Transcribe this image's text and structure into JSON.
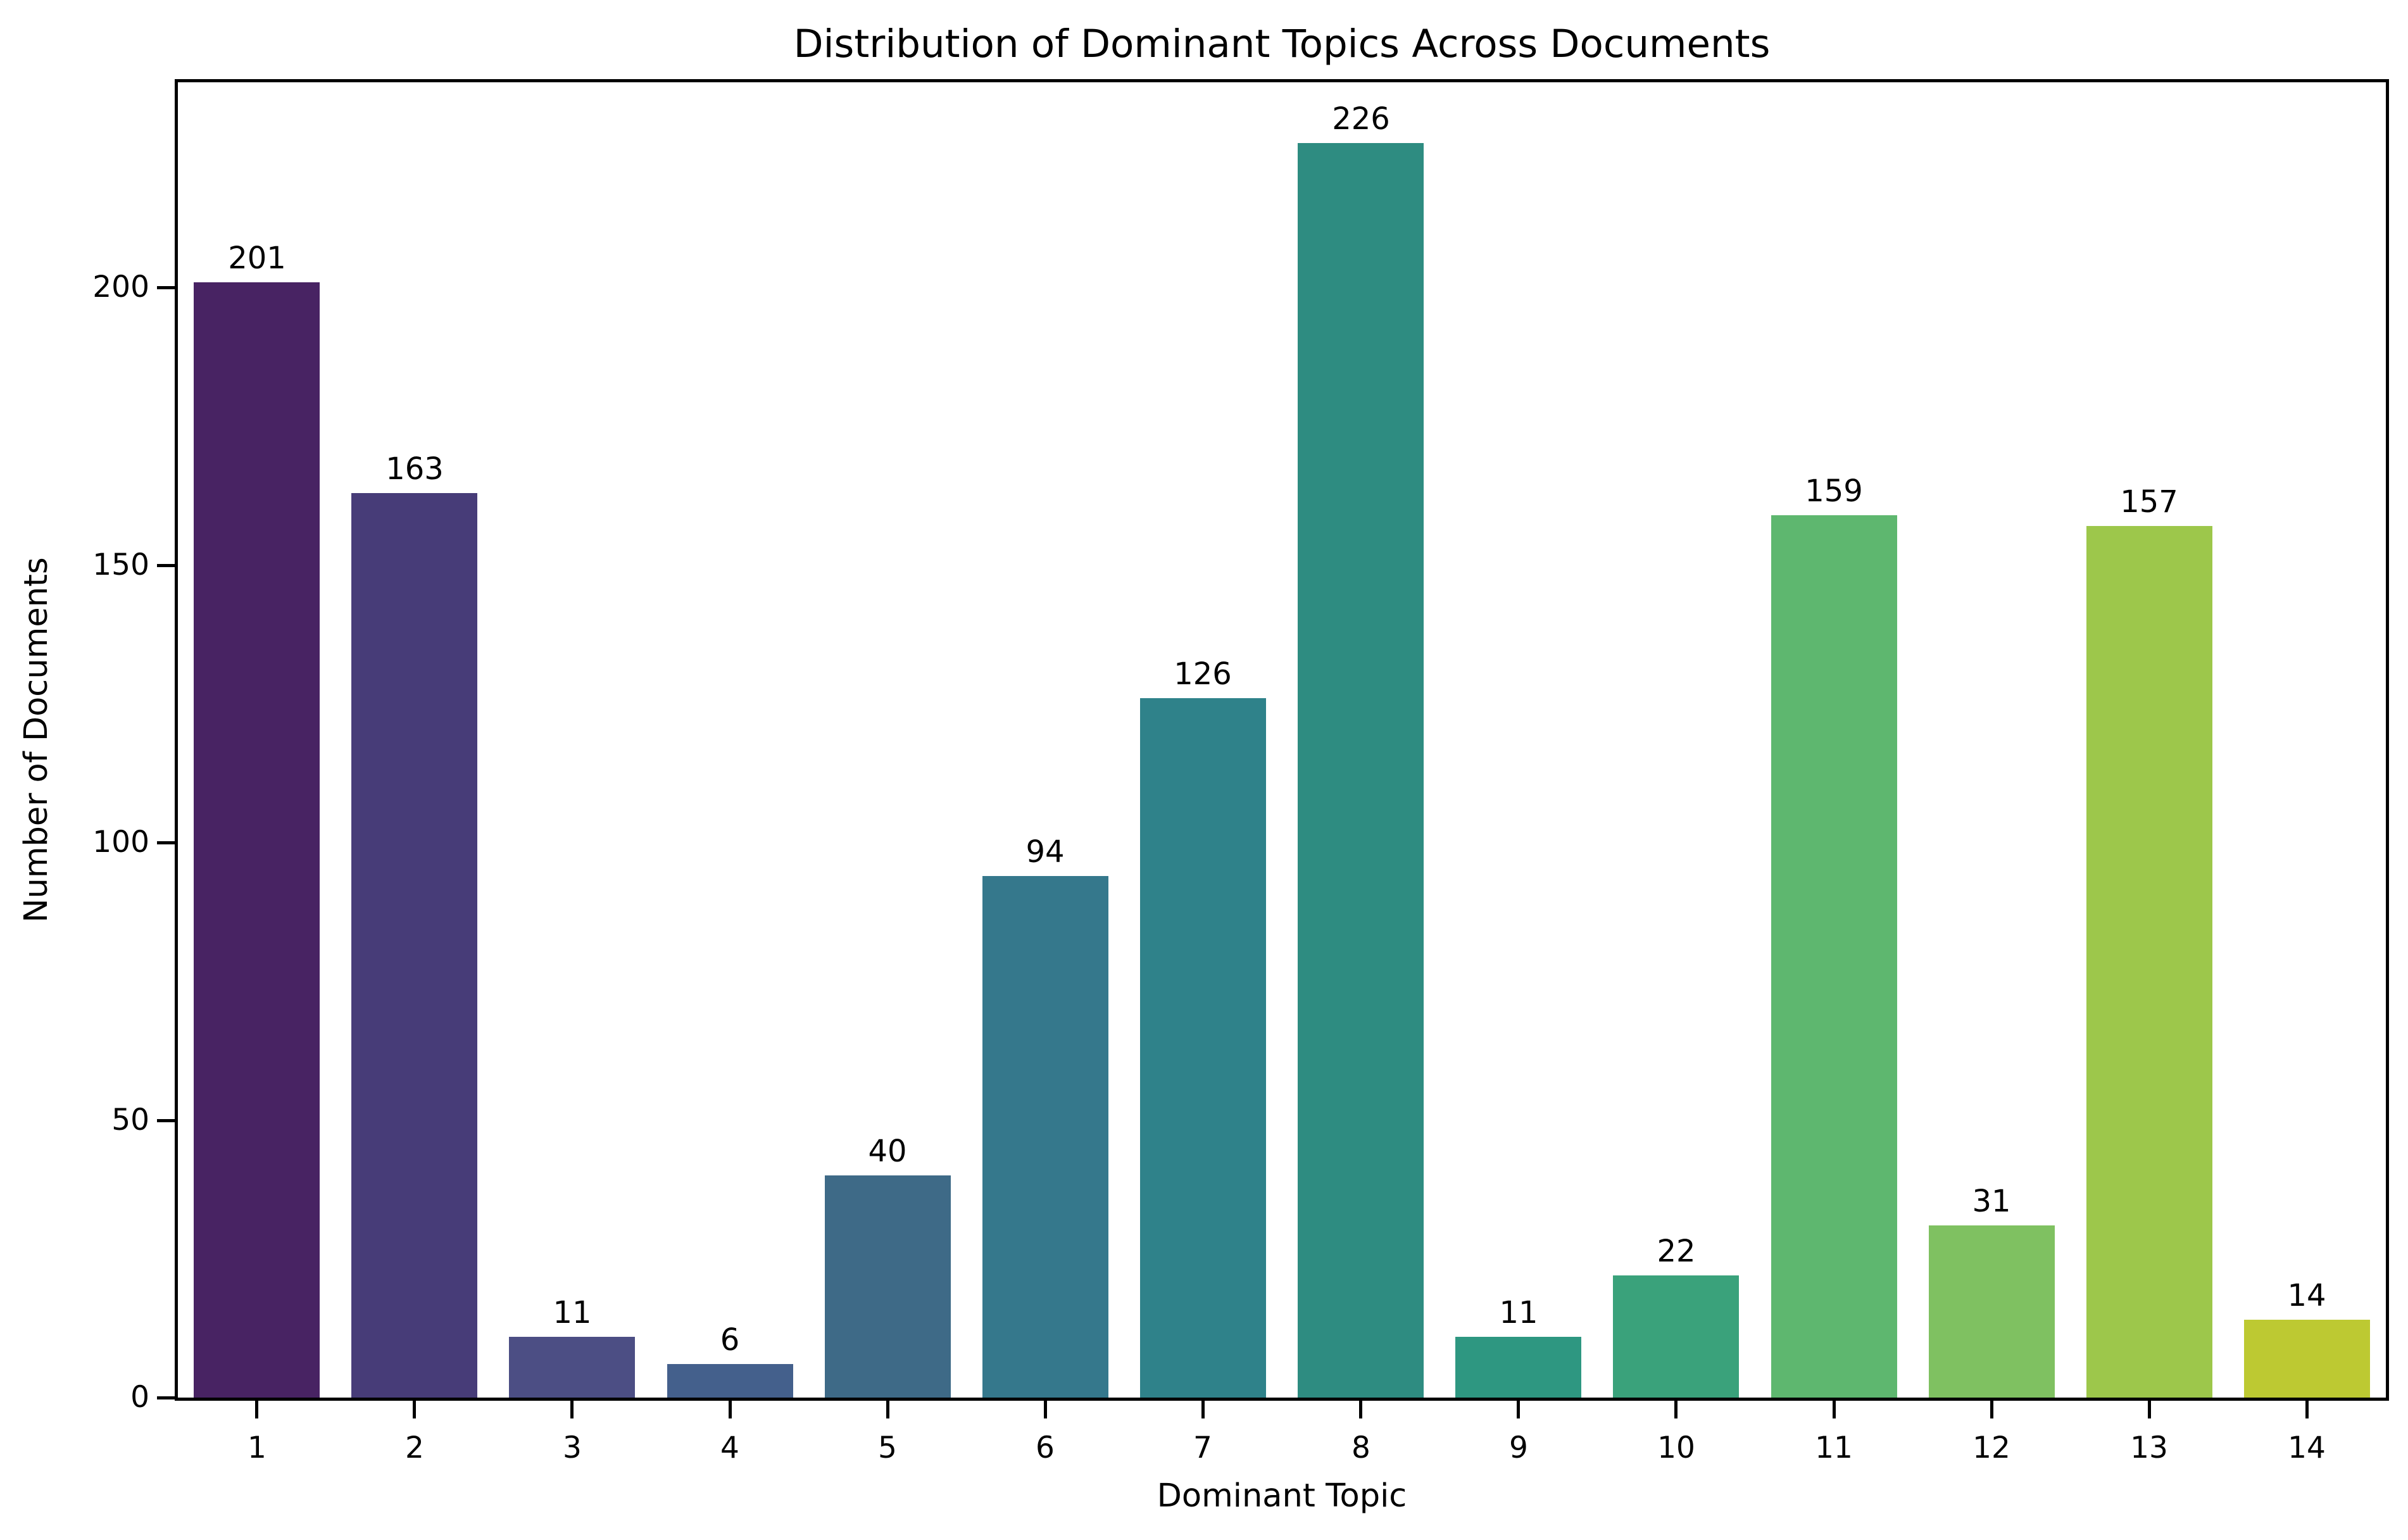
{
  "chart_data": {
    "type": "bar",
    "title": "Distribution of Dominant Topics Across Documents",
    "xlabel": "Dominant Topic",
    "ylabel": "Number of Documents",
    "categories": [
      "1",
      "2",
      "3",
      "4",
      "5",
      "6",
      "7",
      "8",
      "9",
      "10",
      "11",
      "12",
      "13",
      "14"
    ],
    "values": [
      201,
      163,
      11,
      6,
      40,
      94,
      126,
      226,
      11,
      22,
      159,
      31,
      157,
      14
    ],
    "bar_value_labels": [
      "201",
      "163",
      "11",
      "6",
      "40",
      "94",
      "126",
      "226",
      "11",
      "22",
      "159",
      "31",
      "157",
      "14"
    ],
    "bar_colors": [
      "#482363",
      "#473c78",
      "#4c4e84",
      "#44608c",
      "#3e6a87",
      "#35788c",
      "#2f828a",
      "#2e8c81",
      "#2e9781",
      "#3aa27b",
      "#5eb76f",
      "#7fc161",
      "#9dc74b",
      "#bdc932"
    ],
    "yticks": [
      "0",
      "50",
      "100",
      "150",
      "200"
    ],
    "ytick_values": [
      0,
      50,
      100,
      150,
      200
    ],
    "ylim": [
      0,
      237
    ],
    "grid": false,
    "legend_position": "none",
    "bar_width_fraction": 0.8,
    "colors": {
      "spine": "#000000",
      "text": "#000000",
      "background": "#ffffff"
    }
  }
}
